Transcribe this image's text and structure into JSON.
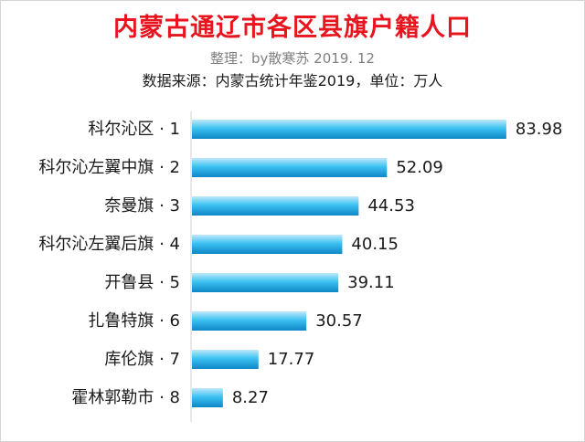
{
  "title": "内蒙古通辽市各区县旗户籍人口",
  "subtitle": "整理：by散寒苏 2019. 12",
  "source": "数据来源：内蒙古统计年鉴2019，单位：万人",
  "colors": {
    "title": "#e8141e",
    "bar_light": "#bfe9fb",
    "bar_mid": "#3cc2f2",
    "bar_dark": "#0e86c6",
    "label": "#1a1a1a",
    "axis": "#d0d0d0"
  },
  "chart_data": {
    "type": "bar",
    "orientation": "horizontal",
    "categories": [
      "科尔沁区 · 1",
      "科尔沁左翼中旗 · 2",
      "奈曼旗 · 3",
      "科尔沁左翼后旗 · 4",
      "开鲁县 · 5",
      "扎鲁特旗 · 6",
      "库伦旗 · 7",
      "霍林郭勒市 · 8"
    ],
    "values": [
      83.98,
      52.09,
      44.53,
      40.15,
      39.11,
      30.57,
      17.77,
      8.27
    ],
    "value_labels": [
      "83.98",
      "52.09",
      "44.53",
      "40.15",
      "39.11",
      "30.57",
      "17.77",
      "8.27"
    ],
    "xlim": [
      0,
      84
    ],
    "grid": false,
    "legend": false
  }
}
